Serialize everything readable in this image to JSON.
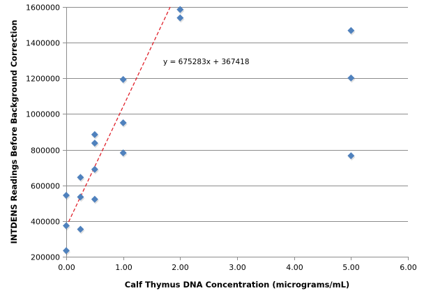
{
  "chart_data": {
    "type": "scatter",
    "title": "",
    "xlabel": "Calf Thymus DNA Concentration (micrograms/mL)",
    "ylabel": "INTDENS Readings Before Background Correction",
    "xlim": [
      0,
      6
    ],
    "ylim": [
      200000,
      1600000
    ],
    "x_ticks": [
      "0.00",
      "1.00",
      "2.00",
      "3.00",
      "4.00",
      "5.00",
      "6.00"
    ],
    "x_tick_values": [
      0,
      1,
      2,
      3,
      4,
      5,
      6
    ],
    "y_ticks": [
      "200000",
      "400000",
      "600000",
      "800000",
      "1000000",
      "1200000",
      "1400000",
      "1600000"
    ],
    "y_tick_values": [
      200000,
      400000,
      600000,
      800000,
      1000000,
      1200000,
      1400000,
      1600000
    ],
    "grid": "horizontal",
    "legend": "none",
    "marker_color": "#4F81BD",
    "trendline_color": "#E0202A",
    "series": [
      {
        "name": "INTDENS",
        "points": [
          {
            "x": 0,
            "y": 544000
          },
          {
            "x": 0,
            "y": 374000
          },
          {
            "x": 0,
            "y": 234000
          },
          {
            "x": 0.25,
            "y": 645000
          },
          {
            "x": 0.25,
            "y": 535000
          },
          {
            "x": 0.25,
            "y": 354000
          },
          {
            "x": 0.5,
            "y": 885000
          },
          {
            "x": 0.5,
            "y": 837000
          },
          {
            "x": 0.5,
            "y": 690000
          },
          {
            "x": 0.5,
            "y": 522000
          },
          {
            "x": 1,
            "y": 1194000
          },
          {
            "x": 1,
            "y": 951000
          },
          {
            "x": 1,
            "y": 782000
          },
          {
            "x": 2,
            "y": 1586000
          },
          {
            "x": 2,
            "y": 1539000
          },
          {
            "x": 5,
            "y": 1468000
          },
          {
            "x": 5,
            "y": 1202000
          },
          {
            "x": 5,
            "y": 766000
          }
        ]
      }
    ],
    "trendline": {
      "type": "linear",
      "slope": 675283,
      "intercept": 367418,
      "equation_label": "y = 675283x + 367418"
    }
  }
}
